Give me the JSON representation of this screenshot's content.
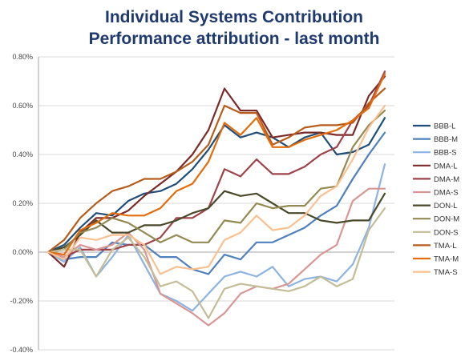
{
  "chart_data": {
    "type": "line",
    "title": "Individual Systems Contribution",
    "subtitle": "Performance attribution - last month",
    "xlabel": "",
    "ylabel": "",
    "ylim": [
      -0.004,
      0.008
    ],
    "y_ticks": [
      "0.80%",
      "0.60%",
      "0.40%",
      "0.20%",
      "0.00%",
      "-0.20%",
      "-0.40%"
    ],
    "y_tick_values": [
      0.008,
      0.006,
      0.004,
      0.002,
      0.0,
      -0.002,
      -0.004
    ],
    "x_count": 22,
    "grid": true,
    "legend_position": "right",
    "series": [
      {
        "name": "BBB-L",
        "color": "#1f4e79",
        "values": [
          0,
          0.0003,
          0.001,
          0.0016,
          0.0015,
          0.0021,
          0.0024,
          0.0025,
          0.0028,
          0.0034,
          0.0042,
          0.0052,
          0.0047,
          0.0049,
          0.0047,
          0.0043,
          0.0047,
          0.0049,
          0.004,
          0.0041,
          0.0044,
          0.0055
        ]
      },
      {
        "name": "BBB-M",
        "color": "#4f81bd",
        "values": [
          0,
          -0.0003,
          -0.0002,
          -0.0002,
          0.0004,
          0.0003,
          0.0003,
          -0.0002,
          -0.0002,
          -0.0007,
          -0.0009,
          -0.0001,
          -0.0003,
          0.0004,
          0.0004,
          0.0007,
          0.001,
          0.0015,
          0.0019,
          0.003,
          0.004,
          0.0049
        ]
      },
      {
        "name": "BBB-S",
        "color": "#8db3e2",
        "values": [
          0,
          -0.0004,
          0.0002,
          -0.001,
          -0.0002,
          0.0007,
          -0.0005,
          -0.0017,
          -0.002,
          -0.0024,
          -0.0017,
          -0.001,
          -0.0008,
          -0.001,
          -0.0006,
          -0.0014,
          -0.0011,
          -0.001,
          -0.0012,
          -0.0005,
          0.001,
          0.0036
        ]
      },
      {
        "name": "DMA-L",
        "color": "#7b2a2a",
        "values": [
          0,
          -0.0006,
          0.0008,
          0.0014,
          0.0014,
          0.0017,
          0.0023,
          0.0028,
          0.0033,
          0.004,
          0.005,
          0.0067,
          0.0058,
          0.0058,
          0.0047,
          0.0048,
          0.0049,
          0.0049,
          0.0048,
          0.0048,
          0.0064,
          0.0072
        ]
      },
      {
        "name": "DMA-M",
        "color": "#a0434a",
        "values": [
          0,
          -0.0002,
          0.0001,
          0.0001,
          0.0001,
          0.0003,
          0.0003,
          0.0006,
          0.0014,
          0.0014,
          0.0018,
          0.0034,
          0.0031,
          0.0038,
          0.0032,
          0.0032,
          0.0035,
          0.004,
          0.0043,
          0.0054,
          0.006,
          0.0074
        ]
      },
      {
        "name": "DMA-S",
        "color": "#d99694",
        "values": [
          0,
          -0.0002,
          0.0003,
          0.0001,
          0.0003,
          0.0008,
          0.0001,
          -0.0017,
          -0.0021,
          -0.0025,
          -0.003,
          -0.0025,
          -0.0017,
          -0.0014,
          -0.0015,
          -0.0013,
          -0.0007,
          -0.0001,
          0.0003,
          0.0021,
          0.0026,
          0.0026
        ]
      },
      {
        "name": "DON-L",
        "color": "#4a4a2a",
        "values": [
          0,
          0.0002,
          0.0007,
          0.0013,
          0.0008,
          0.0008,
          0.0011,
          0.0011,
          0.0013,
          0.0016,
          0.0018,
          0.0025,
          0.0023,
          0.0024,
          0.002,
          0.0016,
          0.0016,
          0.0013,
          0.0012,
          0.0013,
          0.0013,
          0.0024
        ]
      },
      {
        "name": "DON-M",
        "color": "#948a54",
        "values": [
          0,
          0.0001,
          0.0008,
          0.001,
          0.0014,
          0.0012,
          0.0008,
          0.0004,
          0.0007,
          0.0004,
          0.0004,
          0.0013,
          0.0012,
          0.002,
          0.0018,
          0.0019,
          0.0019,
          0.0026,
          0.0027,
          0.0043,
          0.0052,
          0.0058
        ]
      },
      {
        "name": "DON-S",
        "color": "#c4bd97",
        "values": [
          0,
          0.0001,
          0.0001,
          -0.001,
          0.0001,
          0.0006,
          -0.0002,
          -0.0014,
          -0.0012,
          -0.0016,
          -0.0027,
          -0.0015,
          -0.0013,
          -0.0014,
          -0.0015,
          -0.0016,
          -0.0014,
          -0.001,
          -0.0014,
          -0.0011,
          0.0009,
          0.0018
        ]
      },
      {
        "name": "TMA-L",
        "color": "#b85c1a",
        "values": [
          0,
          0.0005,
          0.0014,
          0.002,
          0.0025,
          0.0027,
          0.003,
          0.003,
          0.0033,
          0.0037,
          0.0044,
          0.006,
          0.0057,
          0.0057,
          0.0044,
          0.0047,
          0.0051,
          0.0052,
          0.0052,
          0.0053,
          0.0061,
          0.0067
        ]
      },
      {
        "name": "TMA-M",
        "color": "#e46c0a",
        "values": [
          0,
          -0.0001,
          0.0009,
          0.0012,
          0.0016,
          0.0015,
          0.0015,
          0.0018,
          0.0025,
          0.0028,
          0.0037,
          0.0053,
          0.0048,
          0.0055,
          0.0043,
          0.0043,
          0.0046,
          0.0048,
          0.005,
          0.0054,
          0.0059,
          0.0073
        ]
      },
      {
        "name": "TMA-S",
        "color": "#fac090",
        "values": [
          0,
          -0.0003,
          0.0006,
          0.0005,
          0.0007,
          0.0007,
          0.0003,
          -0.0009,
          -0.0006,
          -0.0007,
          -0.0006,
          0.0005,
          0.0008,
          0.0015,
          0.0009,
          0.001,
          0.0015,
          0.0023,
          0.0027,
          0.0038,
          0.0051,
          0.006
        ]
      }
    ]
  }
}
